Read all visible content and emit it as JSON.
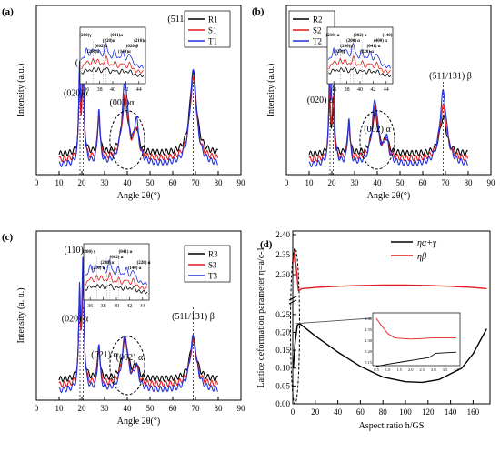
{
  "figure": {
    "panels": [
      {
        "id": "a",
        "panel_label": "(a)",
        "chart_data": {
          "type": "line",
          "xlabel": "Angle 2θ(°)",
          "ylabel": "Intensity (a.u.)",
          "xlim": [
            0,
            90
          ],
          "xticks": [
            0,
            10,
            20,
            30,
            40,
            50,
            60,
            70,
            80,
            90
          ],
          "legend_position": "top-right",
          "series": [
            {
              "name": "R1",
              "color": "#000000",
              "peak_scale": [
                0.48,
                0.62,
                0.28,
                0.4,
                0.17,
                0.62
              ]
            },
            {
              "name": "S1",
              "color": "#e41a1c",
              "peak_scale": [
                0.52,
                0.58,
                0.34,
                0.47,
                0.21,
                0.6
              ]
            },
            {
              "name": "T1",
              "color": "#1f2fe0",
              "peak_scale": [
                0.7,
                0.8,
                0.42,
                0.62,
                0.3,
                0.7
              ]
            }
          ],
          "annotations": [
            "(020)α",
            "(110)α",
            "(002)α",
            "(511/131)β"
          ],
          "inset": {
            "xticks": [
              36,
              38,
              40,
              42,
              44
            ],
            "labels": [
              "(200)γ",
              "(200)α",
              "(002)α",
              "(220)α",
              "(041)α",
              "(140)α",
              "(020)β",
              "(210)α"
            ]
          }
        }
      },
      {
        "id": "b",
        "panel_label": "(b)",
        "chart_data": {
          "type": "line",
          "xlabel": "Angle 2θ(°)",
          "ylabel": "Intensity (a.u.)",
          "xlim": [
            0,
            90
          ],
          "xticks": [
            0,
            10,
            20,
            30,
            40,
            50,
            60,
            70,
            80,
            90
          ],
          "legend_position": "top-left",
          "series": [
            {
              "name": "R2",
              "color": "#000000",
              "peak_scale": [
                0.4,
                0.3,
                0.22,
                0.3,
                0.1,
                0.28
              ]
            },
            {
              "name": "S2",
              "color": "#e41a1c",
              "peak_scale": [
                0.5,
                0.42,
                0.28,
                0.38,
                0.14,
                0.4
              ]
            },
            {
              "name": "T2",
              "color": "#1f2fe0",
              "peak_scale": [
                0.62,
                0.95,
                0.35,
                0.48,
                0.18,
                0.55
              ]
            }
          ],
          "annotations": [
            "(110)",
            "α",
            "(020) α",
            "(002) α",
            "(511/131) β"
          ],
          "inset": {
            "xticks": [
              36,
              38,
              40,
              42,
              44
            ],
            "labels": [
              "(210) α",
              "(020)β",
              "(200)γ",
              "(200) α",
              "(002) α",
              "(220) α",
              "(041) α",
              "(400) α",
              "(140)"
            ]
          }
        }
      },
      {
        "id": "c",
        "panel_label": "(c)",
        "chart_data": {
          "type": "line",
          "xlabel": "Angle 2θ(°)",
          "ylabel": "Intensity (a. u.)",
          "xlim": [
            0,
            90
          ],
          "xticks": [
            0,
            10,
            20,
            30,
            40,
            50,
            60,
            70,
            80,
            90
          ],
          "legend_position": "top-right",
          "series": [
            {
              "name": "R3",
              "color": "#000000",
              "peak_scale": [
                0.55,
                0.7,
                0.25,
                0.3,
                0.1,
                0.3
              ]
            },
            {
              "name": "S3",
              "color": "#e41a1c",
              "peak_scale": [
                0.6,
                0.78,
                0.28,
                0.34,
                0.12,
                0.32
              ]
            },
            {
              "name": "T3",
              "color": "#1f2fe0",
              "peak_scale": [
                0.72,
                0.95,
                0.35,
                0.4,
                0.16,
                0.4
              ]
            }
          ],
          "annotations": [
            "(110) α",
            "(020) α",
            "(021) α",
            "(002) α",
            "(511/131) β"
          ],
          "inset": {
            "xticks": [
              36,
              38,
              40,
              42,
              44
            ],
            "labels": [
              "(200) γ",
              "(210) α",
              "(200) α",
              "(002) α",
              "(041) α",
              "(140) α",
              "(220) α"
            ]
          }
        }
      },
      {
        "id": "d",
        "panel_label": "(d)",
        "chart_data": {
          "type": "line",
          "xlabel": "Aspect ratio h/GS",
          "ylabel": "Lattice deformation parameter  η=a/c-1",
          "xlim": [
            0,
            175
          ],
          "xticks": [
            0,
            20,
            40,
            60,
            80,
            100,
            120,
            140,
            160
          ],
          "yticks_upper": [
            "2.40",
            "2.35",
            "2.30"
          ],
          "yticks_lower": [
            "0.25",
            "0.20",
            "0.15",
            "0.10",
            "0.05",
            "0.00"
          ],
          "legend_position": "top-right",
          "series": [
            {
              "name": "ηα+γ",
              "color": "#000000",
              "x": [
                0.5,
                2,
                4,
                6,
                10,
                20,
                40,
                60,
                80,
                100,
                115,
                130,
                150,
                160,
                172
              ],
              "y": [
                0.1,
                0.17,
                0.22,
                0.225,
                0.215,
                0.19,
                0.145,
                0.105,
                0.075,
                0.062,
                0.06,
                0.068,
                0.1,
                0.14,
                0.21
              ]
            },
            {
              "name": "ηβ",
              "color": "#e41a1c",
              "x": [
                0.5,
                1.5,
                3,
                5,
                8,
                20,
                40,
                60,
                80,
                100,
                120,
                140,
                160,
                172
              ],
              "y": [
                2.33,
                2.36,
                2.32,
                2.26,
                2.265,
                2.268,
                2.271,
                2.273,
                2.274,
                2.274,
                2.273,
                2.271,
                2.268,
                2.265
              ]
            }
          ],
          "inset": {
            "xticks": [
              "0.5",
              "1.0",
              "1.5",
              "2.0",
              "2.5",
              "3.0",
              "3.5",
              "4.0"
            ],
            "yticks": [
              "2.40",
              "2.35",
              "2.30",
              "0.20",
              "0.15"
            ]
          }
        }
      }
    ]
  }
}
